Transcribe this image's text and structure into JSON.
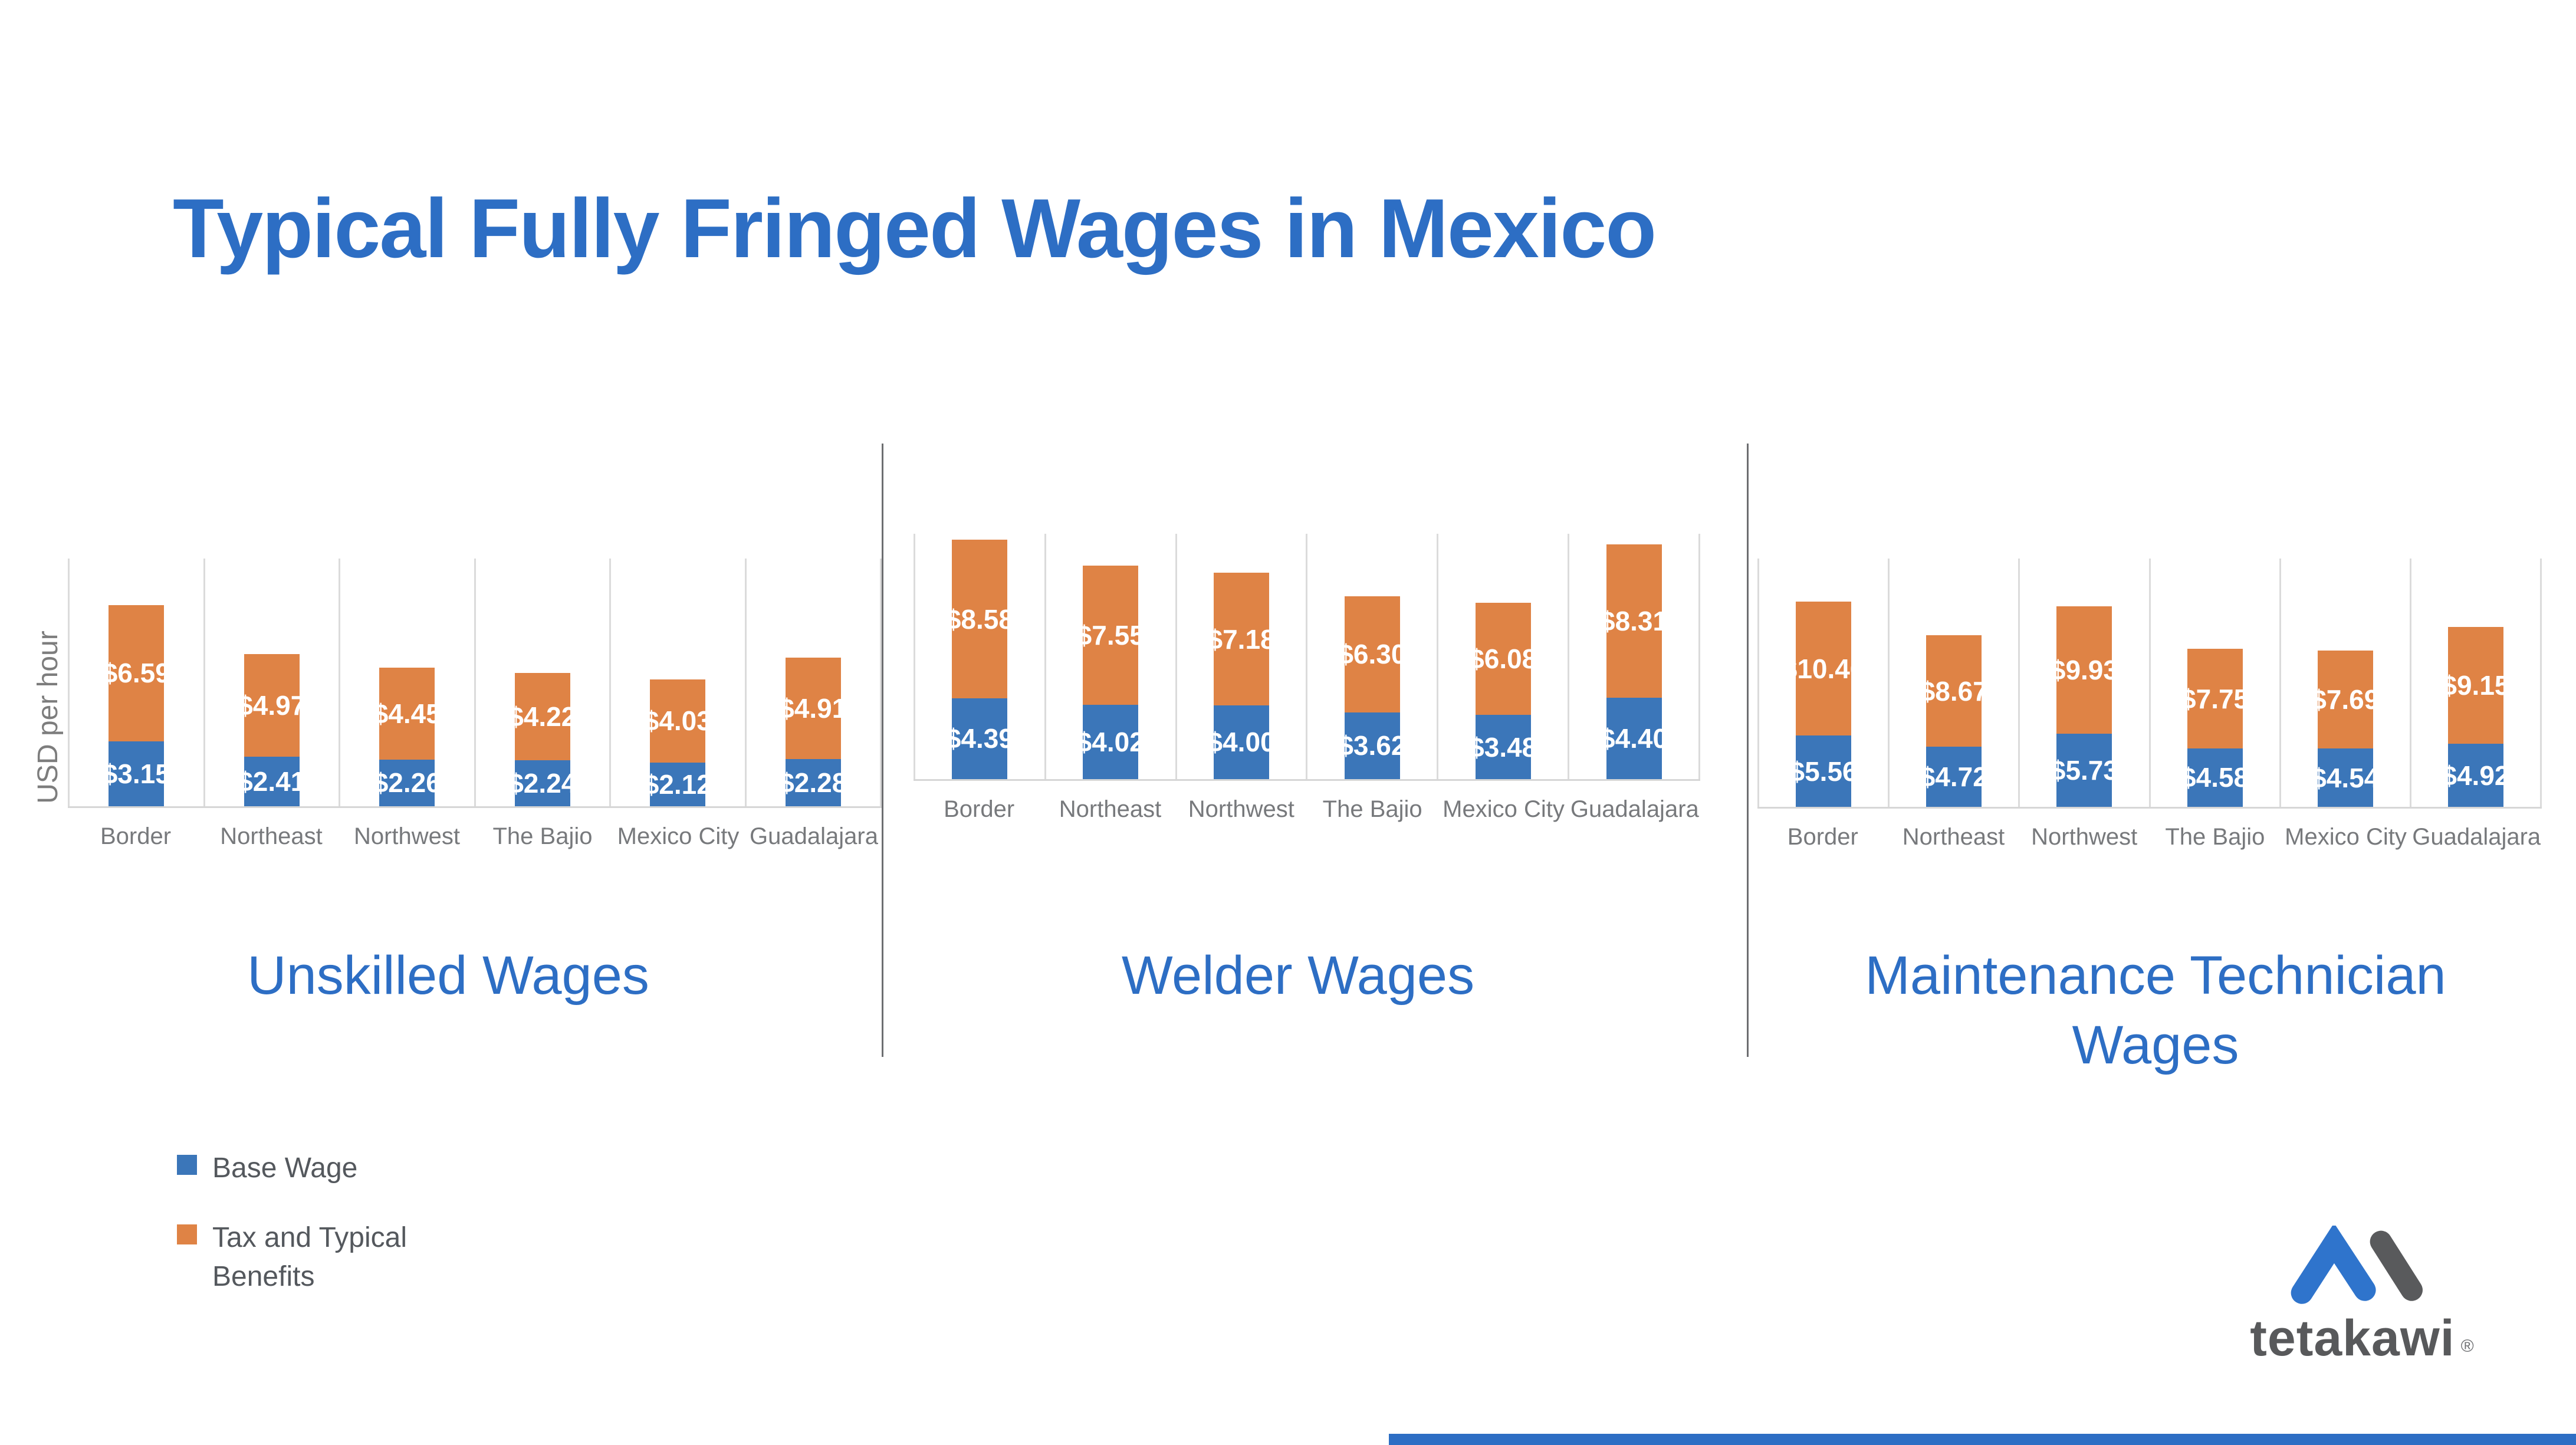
{
  "title": "Typical Fully Fringed Wages in Mexico",
  "y_axis_label": "USD per hour",
  "legend": [
    {
      "label": "Base Wage",
      "color": "#3b76b9"
    },
    {
      "label": "Tax and Typical Benefits",
      "color": "#df8345"
    }
  ],
  "colors": {
    "base_wage": "#3b76b9",
    "tax_benefits": "#df8345",
    "accent_blue": "#2d6ec4",
    "divider_gray": "#6d6e71",
    "gridline_gray": "#dbdbdb",
    "axis_label_gray": "#77797c",
    "legend_text_gray": "#54585d",
    "logo_gray": "#58595b",
    "logo_blue": "#2f74cc",
    "footer_bar": "#2d6ec4"
  },
  "logo": {
    "text": "tetakawi",
    "registered": "®"
  },
  "chart_data": [
    {
      "type": "bar",
      "stacked": true,
      "title": "Unskilled Wages",
      "ylabel": "USD per hour",
      "ylim": [
        0,
        12.0
      ],
      "grid": "vertical-category-separators",
      "legend_position": "bottom-left",
      "categories": [
        "Border",
        "Northeast",
        "Northwest",
        "The Bajio",
        "Mexico City",
        "Guadalajara"
      ],
      "series": [
        {
          "name": "Base Wage",
          "values": [
            3.15,
            2.41,
            2.26,
            2.24,
            2.12,
            2.28
          ]
        },
        {
          "name": "Tax and Typical Benefits",
          "values": [
            6.59,
            4.97,
            4.45,
            4.22,
            4.03,
            4.91
          ]
        }
      ]
    },
    {
      "type": "bar",
      "stacked": true,
      "title": "Welder Wages",
      "ylabel": "USD per hour",
      "ylim": [
        0,
        13.3
      ],
      "grid": "vertical-category-separators",
      "legend_position": "bottom-left",
      "categories": [
        "Border",
        "Northeast",
        "Northwest",
        "The Bajio",
        "Mexico City",
        "Guadalajara"
      ],
      "series": [
        {
          "name": "Base Wage",
          "values": [
            4.39,
            4.02,
            4.0,
            3.62,
            3.48,
            4.4
          ]
        },
        {
          "name": "Tax and Typical Benefits",
          "values": [
            8.58,
            7.55,
            7.18,
            6.3,
            6.08,
            8.31
          ]
        }
      ]
    },
    {
      "type": "bar",
      "stacked": true,
      "title": "Maintenance Technician Wages",
      "ylabel": "USD per hour",
      "ylim": [
        0,
        19.4
      ],
      "grid": "vertical-category-separators",
      "legend_position": "bottom-left",
      "categories": [
        "Border",
        "Northeast",
        "Northwest",
        "The Bajio",
        "Mexico City",
        "Guadalajara"
      ],
      "series": [
        {
          "name": "Base Wage",
          "values": [
            5.56,
            4.72,
            5.73,
            4.58,
            4.54,
            4.92
          ]
        },
        {
          "name": "Tax and Typical Benefits",
          "values": [
            10.46,
            8.67,
            9.93,
            7.75,
            7.69,
            9.15
          ]
        }
      ]
    }
  ]
}
